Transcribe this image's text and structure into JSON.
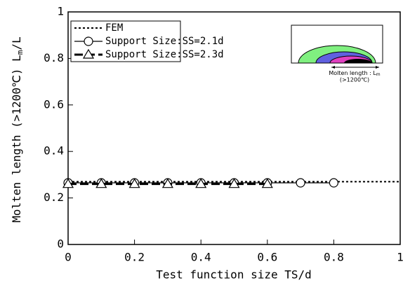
{
  "chart_data": {
    "type": "line",
    "y_label": "Molten length (>1200℃) L",
    "y_label_sub": "m",
    "y_label_end": "/L",
    "x_label": "Test function size TS/d",
    "xlim": [
      0,
      1
    ],
    "xticks": [
      0,
      0.2,
      0.4,
      0.6,
      0.8,
      1
    ],
    "ylim": [
      0,
      1
    ],
    "yticks": [
      0,
      0.2,
      0.4,
      0.6,
      0.8,
      1
    ],
    "series": [
      {
        "name": "FEM",
        "color": "#000000",
        "style": "dotted",
        "marker": "none",
        "x": [
          0,
          1
        ],
        "values": [
          0.27,
          0.27
        ]
      },
      {
        "name": "Support Size:SS=2.1d",
        "color": "#000000",
        "style": "solid",
        "marker": "circle",
        "x": [
          0,
          0.1,
          0.2,
          0.3,
          0.4,
          0.5,
          0.6,
          0.7,
          0.8
        ],
        "values": [
          0.265,
          0.265,
          0.265,
          0.265,
          0.265,
          0.265,
          0.265,
          0.265,
          0.265
        ]
      },
      {
        "name": "Support Size:SS=2.3d",
        "color": "#000000",
        "style": "dashed",
        "marker": "triangle",
        "x": [
          0,
          0.1,
          0.2,
          0.3,
          0.4,
          0.5,
          0.6
        ],
        "values": [
          0.26,
          0.26,
          0.26,
          0.26,
          0.26,
          0.26,
          0.26
        ]
      }
    ],
    "legend": "upper-left",
    "inset_label": "Molten length : L",
    "inset_label_sub": "m",
    "inset_note": "(>1200℃)"
  }
}
